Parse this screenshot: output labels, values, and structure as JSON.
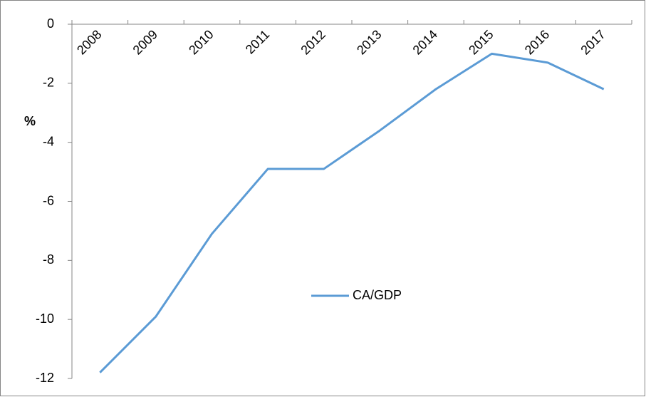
{
  "chart_data": {
    "type": "line",
    "y_label": "%",
    "categories": [
      "2008",
      "2009",
      "2010",
      "2011",
      "2012",
      "2013",
      "2014",
      "2015",
      "2016",
      "2017"
    ],
    "series": [
      {
        "name": "CA/GDP",
        "color": "#5b9bd5",
        "values": [
          -11.8,
          -9.9,
          -7.1,
          -4.9,
          -4.9,
          -3.6,
          -2.2,
          -1.0,
          -1.3,
          -2.2
        ]
      }
    ],
    "ylim": [
      -12,
      0
    ],
    "yticks": [
      -12,
      -10,
      -8,
      -6,
      -4,
      -2,
      0
    ],
    "legend": "center"
  }
}
